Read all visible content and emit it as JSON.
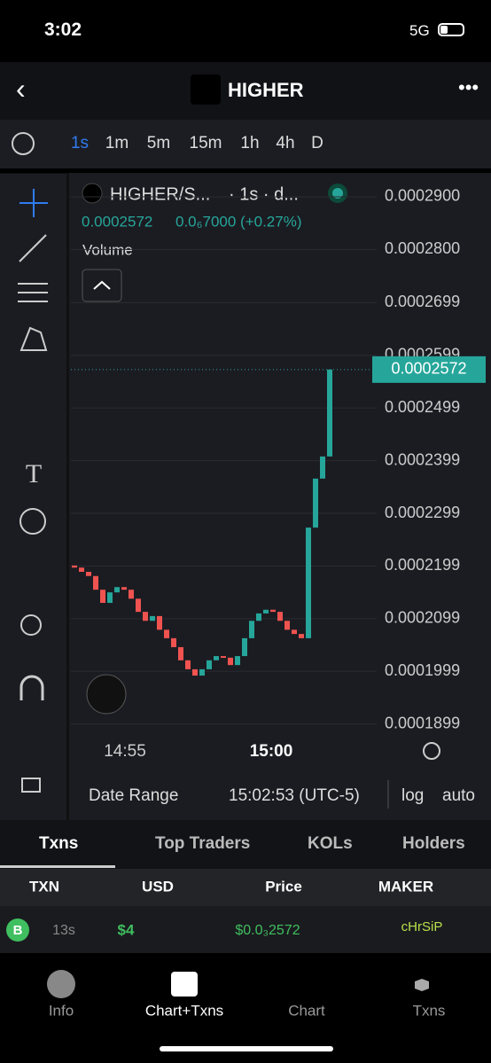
{
  "status_bar": {
    "time": "3:02",
    "network": "5G"
  },
  "header": {
    "title": "HIGHER"
  },
  "timeframes": [
    "1s",
    "1m",
    "5m",
    "15m",
    "1h",
    "4h",
    "D"
  ],
  "legend": {
    "pair": "HIGHER/S...",
    "interval": "· 1s · d...",
    "price": "0.0002572",
    "change": "0.0₆7000 (+0.27%)",
    "volume": "Volume"
  },
  "chart_data": {
    "type": "candlestick",
    "ylim": [
      0.0001885,
      0.0002937
    ],
    "yticks": [
      {
        "value": 0.00029,
        "label": "0.0002900"
      },
      {
        "value": 0.00028,
        "label": "0.0002800"
      },
      {
        "value": 0.0002699,
        "label": "0.0002699"
      },
      {
        "value": 0.0002599,
        "label": "0.0002599"
      },
      {
        "value": 0.0002499,
        "label": "0.0002499"
      },
      {
        "value": 0.0002399,
        "label": "0.0002399"
      },
      {
        "value": 0.0002299,
        "label": "0.0002299"
      },
      {
        "value": 0.0002199,
        "label": "0.0002199"
      },
      {
        "value": 0.0002099,
        "label": "0.0002099"
      },
      {
        "value": 0.0001999,
        "label": "0.0001999"
      },
      {
        "value": 0.0001899,
        "label": "0.0001899"
      }
    ],
    "x_labels": [
      "14:55",
      "15:00"
    ],
    "open": [
      0.00022,
      0.0002196,
      0.0002188,
      0.000218,
      0.0002154,
      0.0002129,
      0.0002149,
      0.0002159,
      0.0002154,
      0.0002137,
      0.0002112,
      0.0002095,
      0.0002104,
      0.0002078,
      0.0002062,
      0.0002045,
      0.000202,
      0.0002003,
      0.0001991,
      0.0002003,
      0.000202,
      0.0002028,
      0.0002025,
      0.0002011,
      0.0002028,
      0.0002062,
      0.0002095,
      0.0002109,
      0.0002116,
      0.0002112,
      0.0002095,
      0.0002078,
      0.000207,
      0.0002062,
      0.0002272,
      0.0002365,
      0.0002407
    ],
    "close": [
      0.0002196,
      0.0002188,
      0.000218,
      0.0002154,
      0.0002129,
      0.0002149,
      0.0002159,
      0.0002154,
      0.0002137,
      0.0002112,
      0.0002095,
      0.0002104,
      0.0002078,
      0.0002062,
      0.0002045,
      0.000202,
      0.0002003,
      0.0001991,
      0.0002003,
      0.000202,
      0.0002028,
      0.0002025,
      0.0002011,
      0.0002028,
      0.0002062,
      0.0002095,
      0.0002109,
      0.0002116,
      0.0002112,
      0.0002095,
      0.0002078,
      0.000207,
      0.0002062,
      0.0002272,
      0.0002365,
      0.0002407,
      0.0002572
    ],
    "up_color": "#26a69a",
    "down_color": "#ef5350",
    "last_price": {
      "value": 0.0002572,
      "label": "0.0002572"
    }
  },
  "chart_footer": {
    "date_range": "Date Range",
    "time": "15:02:53 (UTC-5)",
    "log": "log",
    "auto": "auto"
  },
  "tabs": [
    "Txns",
    "Top Traders",
    "KOLs",
    "Holders"
  ],
  "table": {
    "headers": [
      "TXN",
      "USD",
      "Price",
      "MAKER"
    ],
    "rows": [
      [
        "B",
        "13s",
        "$4",
        "$0.0₃2572",
        "cHrSiP"
      ]
    ]
  },
  "nav": [
    "Info",
    "Chart+Txns",
    "Chart",
    "Txns"
  ]
}
